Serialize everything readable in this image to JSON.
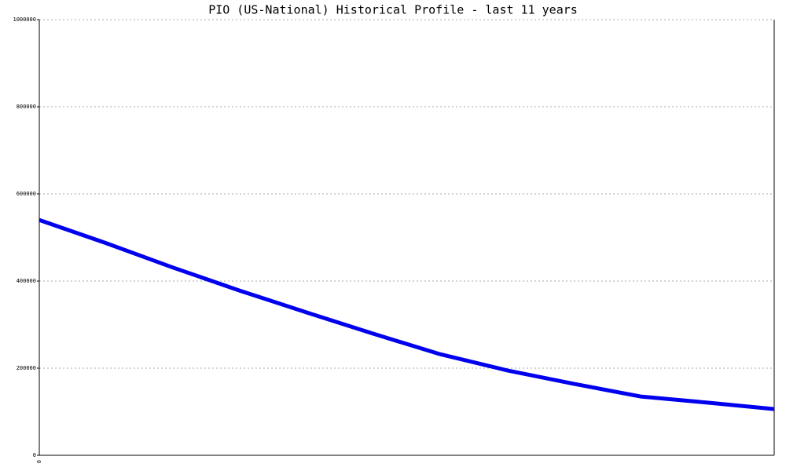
{
  "chart_data": {
    "type": "line",
    "title": "PIO (US-National) Historical Profile - last 11 years",
    "categories": [
      "0",
      null,
      null,
      null,
      null,
      null,
      null,
      null,
      null,
      null,
      null,
      null
    ],
    "series": [
      {
        "color": "#0000ee",
        "values": [
          540000,
          487000,
          431000,
          378000,
          328000,
          279000,
          232000,
          195000,
          164000,
          135000,
          121000,
          106000
        ]
      }
    ],
    "ylim": [
      0,
      1000000
    ],
    "yticks": [
      0,
      200000,
      400000,
      600000,
      800000,
      1000000
    ],
    "grid": true
  }
}
